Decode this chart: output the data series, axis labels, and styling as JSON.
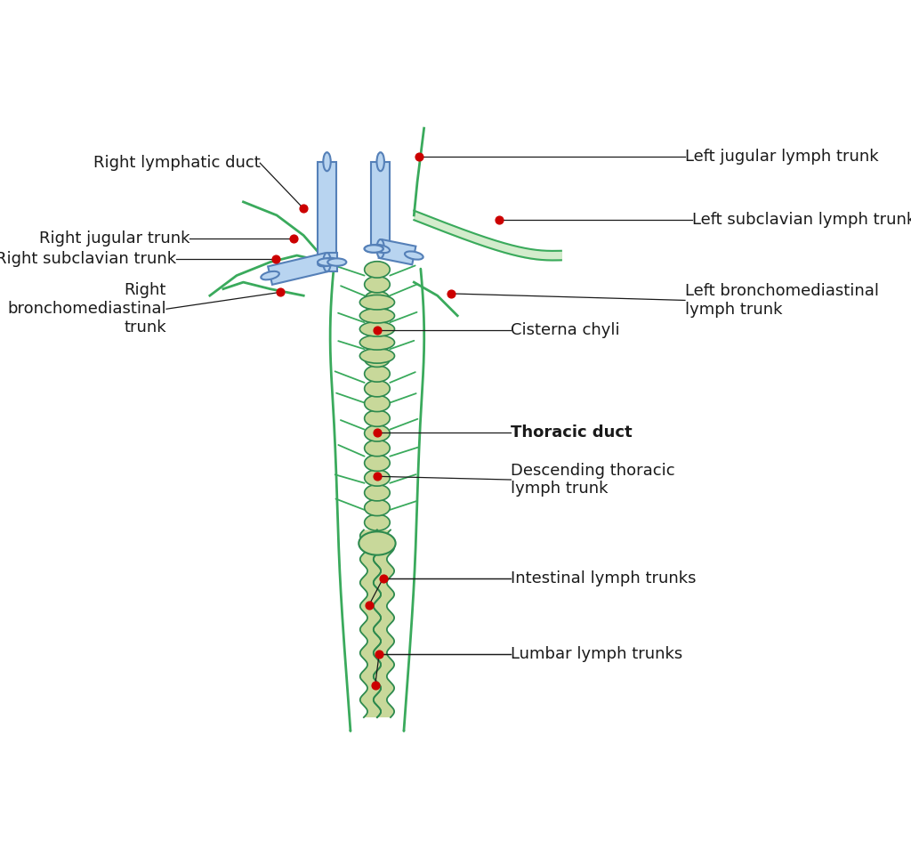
{
  "background_color": "#ffffff",
  "thoracic_duct_color": "#c8d89a",
  "thoracic_duct_outline": "#2d8a4e",
  "vein_fill": "#b8d4f0",
  "vein_outline": "#5580b8",
  "green_vessel_color": "#3aaa5c",
  "green_vessel_fill": "#a8d8a0",
  "red_dot_color": "#cc0000",
  "label_color": "#1a1a1a",
  "annotation_line_color": "#1a1a1a",
  "labels": {
    "right_lymphatic_duct": "Right lymphatic duct",
    "right_jugular_trunk": "Right jugular trunk",
    "right_subclavian_trunk": "Right subclavian trunk",
    "right_bronchomediastinal_trunk": "Right\nbronchomediastinal\ntrunk",
    "left_jugular_lymph_trunk": "Left jugular lymph trunk",
    "left_subclavian_lymph_trunk": "Left subclavian lymph trunk",
    "left_bronchomediastinal_lymph_trunk": "Left bronchomediastinal\nlymph trunk",
    "thoracic_duct": "Thoracic duct",
    "descending_thoracic_lymph_trunk": "Descending thoracic\nlymph trunk",
    "cisterna_chyli": "Cisterna chyli",
    "intestinal_lymph_trunks": "Intestinal lymph trunks",
    "lumbar_lymph_trunks": "Lumbar lymph trunks"
  },
  "font_size": 13,
  "bold_label": "thoracic_duct"
}
